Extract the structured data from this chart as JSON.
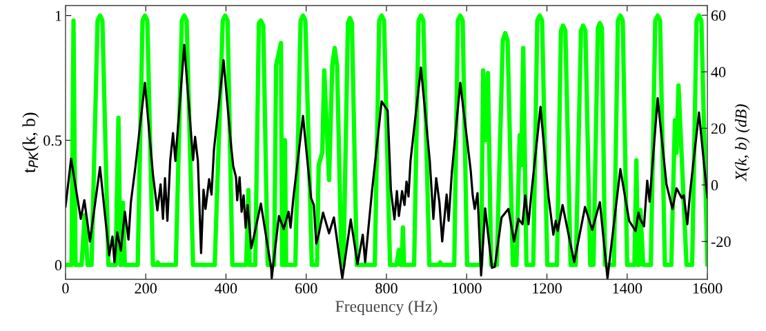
{
  "chart_data": {
    "type": "line",
    "xlabel": "Frequency (Hz)",
    "ylabel": "t$_{PK}$(k, b)",
    "y2label": "X(k, b) (dB)",
    "xlim": [
      0,
      1600
    ],
    "xticks": [
      0,
      200,
      400,
      600,
      800,
      1000,
      1200,
      1400,
      1600
    ],
    "ylim": [
      -0.058,
      1.04
    ],
    "yticks": [
      0,
      0.5,
      1
    ],
    "y2lim": [
      -33.4,
      63.4
    ],
    "y2ticks": [
      -20,
      0,
      20,
      40,
      60
    ],
    "grid": false,
    "legend": false,
    "marker": "none",
    "line_style": "solid",
    "series": [
      {
        "color": "#00ff00",
        "x": [
          0,
          15,
          20,
          25,
          40,
          48,
          55,
          65,
          80,
          86,
          92,
          107,
          125,
          132,
          137,
          140,
          143,
          148,
          180,
          192,
          198,
          204,
          218,
          228,
          230,
          233,
          275,
          290,
          296,
          302,
          318,
          372,
          392,
          398,
          404,
          416,
          450,
          453,
          456,
          459,
          473,
          482,
          487,
          493,
          504,
          520,
          525,
          537,
          540,
          544,
          547,
          550,
          573,
          586,
          592,
          598,
          614,
          627,
          631,
          640,
          645,
          657,
          665,
          671,
          677,
          688,
          693,
          704,
          709,
          714,
          726,
          771,
          782,
          788,
          794,
          809,
          825,
          831,
          835,
          838,
          841,
          844,
          869,
          880,
          886,
          892,
          907,
          931,
          934,
          937,
          969,
          978,
          984,
          990,
          1001,
          1036,
          1041,
          1046,
          1053,
          1061,
          1075,
          1090,
          1096,
          1102,
          1115,
          1124,
          1132,
          1136,
          1141,
          1149,
          1166,
          1176,
          1182,
          1188,
          1201,
          1225,
          1235,
          1240,
          1246,
          1259,
          1272,
          1285,
          1290,
          1296,
          1308,
          1316,
          1327,
          1332,
          1337,
          1345,
          1367,
          1377,
          1383,
          1389,
          1400,
          1418,
          1423,
          1427,
          1430,
          1433,
          1440,
          1459,
          1470,
          1476,
          1482,
          1494,
          1510,
          1519,
          1523,
          1528,
          1548,
          1562,
          1573,
          1579,
          1585,
          1600
        ],
        "values": [
          0,
          0,
          0.98,
          0,
          0,
          0.2,
          0,
          0,
          0.98,
          1,
          0.98,
          0,
          0,
          0.59,
          0,
          0,
          0.25,
          0,
          0,
          0.98,
          1,
          0.98,
          0,
          0,
          0.01,
          0,
          0,
          0.98,
          1,
          0.98,
          0,
          0,
          0.98,
          1,
          0.98,
          0,
          0,
          0.12,
          0.3,
          0,
          0,
          0.97,
          0.98,
          0.96,
          0,
          0,
          0.8,
          0.89,
          0,
          0,
          0.5,
          0,
          0,
          0.98,
          1,
          0.98,
          0,
          0,
          0.4,
          0.45,
          0.78,
          0.34,
          0.8,
          0.87,
          0.8,
          0,
          0,
          0.97,
          0.99,
          0.97,
          0,
          0,
          0.98,
          1,
          0.98,
          0,
          0,
          0.06,
          0,
          0,
          0.15,
          0,
          0,
          0.98,
          1,
          0.98,
          0,
          0,
          0.01,
          0,
          0,
          0.98,
          1,
          0.98,
          0,
          0,
          0.78,
          0.5,
          0.77,
          0,
          0,
          0.9,
          0.93,
          0.9,
          0,
          0,
          0.52,
          0.4,
          0.87,
          0,
          0,
          0.98,
          1,
          0.98,
          0,
          0,
          0.94,
          0.96,
          0.94,
          0,
          0,
          0.94,
          0.96,
          0.94,
          0,
          0,
          0.95,
          0.97,
          0.95,
          0,
          0,
          0.98,
          1,
          0.98,
          0,
          0,
          0.42,
          0,
          0,
          0.22,
          0,
          0,
          0.98,
          1,
          0.98,
          0,
          0,
          0.58,
          0.45,
          0.72,
          0,
          0,
          0.98,
          1,
          0.98,
          0
        ]
      },
      {
        "axis": "y2",
        "color": "#000000",
        "x": [
          0,
          14,
          38,
          47,
          61,
          86,
          109,
          117,
          122,
          129,
          138,
          148,
          157,
          163,
          174,
          198,
          218,
          229,
          237,
          243,
          248,
          254,
          261,
          268,
          274,
          296,
          318,
          323,
          330,
          338,
          344,
          349,
          358,
          364,
          370,
          394,
          413,
          418,
          425,
          428,
          434,
          439,
          444,
          449,
          454,
          463,
          470,
          487,
          513,
          514,
          532,
          544,
          556,
          561,
          568,
          592,
          612,
          619,
          625,
          631,
          642,
          657,
          669,
          690,
          711,
          728,
          741,
          747,
          754,
          764,
          788,
          803,
          811,
          820,
          826,
          831,
          839,
          845,
          850,
          855,
          860,
          886,
          908,
          917,
          924,
          932,
          939,
          950,
          955,
          963,
          984,
          1010,
          1015,
          1020,
          1027,
          1036,
          1046,
          1063,
          1070,
          1087,
          1104,
          1118,
          1129,
          1139,
          1146,
          1154,
          1161,
          1184,
          1204,
          1216,
          1222,
          1227,
          1239,
          1268,
          1295,
          1313,
          1332,
          1351,
          1383,
          1405,
          1421,
          1428,
          1433,
          1442,
          1450,
          1456,
          1476,
          1498,
          1513,
          1523,
          1536,
          1541,
          1550,
          1557,
          1579,
          1600
        ],
        "values": [
          -7.8,
          9.3,
          -12,
          -5.4,
          -20,
          6.3,
          -24.9,
          -18.3,
          -27.3,
          -16.8,
          -23.2,
          -9.5,
          -19.3,
          -6.1,
          6.1,
          36.1,
          3.7,
          -9,
          0.2,
          -12,
          2.4,
          -12.7,
          8.5,
          18.3,
          8.5,
          49.5,
          8.8,
          17,
          8.5,
          -24.1,
          -1.7,
          -8.5,
          2,
          -3.4,
          12.4,
          44.1,
          13.4,
          6.8,
          2.7,
          -5.4,
          2.7,
          -9.5,
          -3.7,
          -15.1,
          -7.1,
          -22.4,
          -18,
          -6.6,
          -29.8,
          -33,
          -11,
          -15.6,
          -9.5,
          -15.1,
          -4.6,
          24.4,
          -4.6,
          -7.1,
          -20.7,
          -17.6,
          -9.8,
          -17.1,
          -11.5,
          -33,
          -12.2,
          -28,
          -17.6,
          -27.3,
          -16.8,
          -2.2,
          29.5,
          26.3,
          -1.7,
          -12.2,
          -2.2,
          -11,
          -2.2,
          -7.1,
          1.2,
          -4.1,
          8.5,
          41.5,
          8.5,
          -12,
          2.4,
          -6.1,
          -20,
          -3.4,
          -12.7,
          4.4,
          36.1,
          5.1,
          -3.7,
          -8.5,
          -2.9,
          -32,
          -8.3,
          -29.3,
          -29,
          -11.5,
          -8.5,
          -20,
          -12,
          -13.9,
          -3.7,
          -13.9,
          -3.4,
          27.6,
          -4.1,
          -17.6,
          -12.7,
          -16.3,
          -7.1,
          -27.3,
          -7.8,
          -15.9,
          -6.1,
          -33,
          5.6,
          -12.7,
          -16.3,
          -9.8,
          -12.2,
          -14.6,
          1.5,
          -5.9,
          30.7,
          0.2,
          -8.5,
          -1.2,
          -4.6,
          -3.7,
          -13.9,
          -2.4,
          25.6,
          -4.6
        ]
      }
    ]
  }
}
